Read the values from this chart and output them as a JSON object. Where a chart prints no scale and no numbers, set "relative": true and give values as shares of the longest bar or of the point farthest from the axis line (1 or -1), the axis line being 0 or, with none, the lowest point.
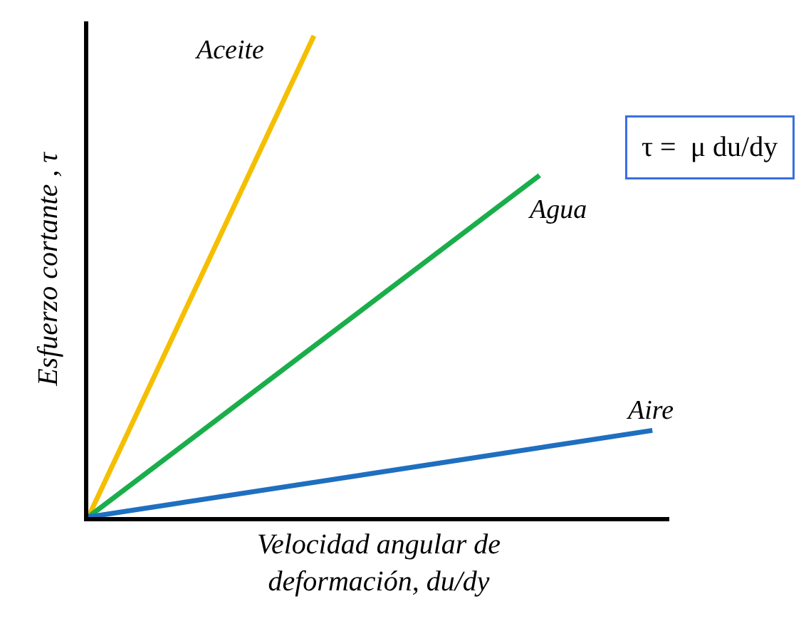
{
  "chart_data": {
    "type": "line",
    "relative": true,
    "xlabel": "Velocidad angular de deformación, du/dy",
    "ylabel": "Esfuerzo cortante , τ",
    "annotations": [
      "τ =  μ du/dy"
    ],
    "legend": false,
    "marker": "none",
    "line_style": "solid",
    "categories": [
      null,
      null,
      null,
      null,
      null,
      null,
      null,
      null,
      null,
      null,
      null
    ],
    "series": [
      {
        "name": "Aceite",
        "color": "#f5bf00",
        "values": [
          0,
          null,
          null,
          null,
          1,
          null,
          null,
          null,
          null,
          null,
          null
        ]
      },
      {
        "name": "Agua",
        "color": "#1aae4b",
        "values": [
          0,
          null,
          null,
          null,
          null,
          null,
          null,
          null,
          0.71,
          null,
          null
        ]
      },
      {
        "name": "Aire",
        "color": "#1f6fc0",
        "values": [
          0,
          null,
          null,
          null,
          null,
          null,
          null,
          null,
          null,
          null,
          0.18
        ]
      }
    ]
  }
}
